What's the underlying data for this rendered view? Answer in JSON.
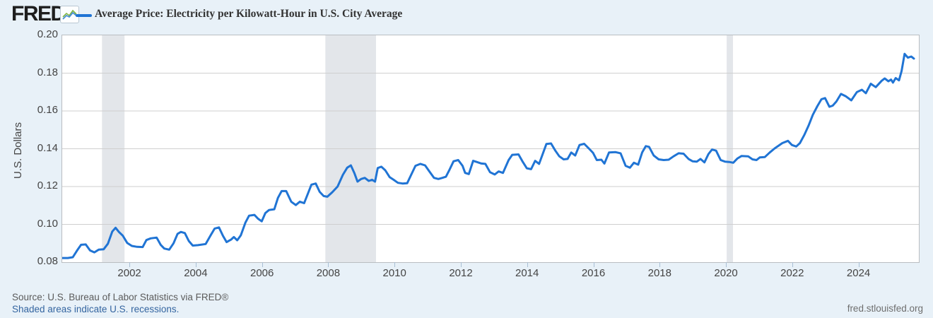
{
  "header": {
    "logo_text": "FRED",
    "logo_reg": "®",
    "legend": {
      "swatch_color": "#2074d4",
      "label": "Average Price: Electricity per Kilowatt-Hour in U.S. City Average"
    }
  },
  "footer": {
    "source": "Source: U.S. Bureau of Labor Statistics via FRED®",
    "recession_note": "Shaded areas indicate U.S. recessions.",
    "site": "fred.stlouisfed.org"
  },
  "colors": {
    "page_background": "#e8f1f8",
    "plot_background": "#ffffff",
    "plot_border": "#b9bdc1",
    "gridline": "#cfcfcf",
    "recession_band": "#e3e6ea",
    "line": "#2074d4",
    "axis_text": "#444444",
    "tick_mark": "#a9bfd4",
    "link_blue": "#3465a0"
  },
  "chart_data": {
    "type": "line",
    "title": "Average Price: Electricity per Kilowatt-Hour in U.S. City Average",
    "xlabel": "",
    "ylabel": "U.S. Dollars",
    "ylim": [
      0.08,
      0.2
    ],
    "xlim": [
      1999.95,
      2025.8
    ],
    "grid": true,
    "legend_position": "top",
    "line_color": "#2074d4",
    "y_ticks": [
      0.08,
      0.1,
      0.12,
      0.14,
      0.16,
      0.18,
      0.2
    ],
    "y_tick_labels": [
      "0.08",
      "0.10",
      "0.12",
      "0.14",
      "0.16",
      "0.18",
      "0.20"
    ],
    "x_ticks": [
      2002,
      2004,
      2006,
      2008,
      2010,
      2012,
      2014,
      2016,
      2018,
      2020,
      2022,
      2024
    ],
    "x_tick_labels": [
      "2002",
      "2004",
      "2006",
      "2008",
      "2010",
      "2012",
      "2014",
      "2016",
      "2018",
      "2020",
      "2022",
      "2024"
    ],
    "recessions": [
      {
        "start": 2001.15,
        "end": 2001.83
      },
      {
        "start": 2007.89,
        "end": 2009.42
      },
      {
        "start": 2020.0,
        "end": 2020.19
      }
    ],
    "series": [
      {
        "name": "Average Price: Electricity per Kilowatt-Hour in U.S. City Average",
        "units": "U.S. Dollars",
        "points": [
          [
            1999.95,
            0.0822
          ],
          [
            2000.12,
            0.0822
          ],
          [
            2000.27,
            0.0826
          ],
          [
            2000.4,
            0.0862
          ],
          [
            2000.52,
            0.0892
          ],
          [
            2000.66,
            0.0894
          ],
          [
            2000.79,
            0.0862
          ],
          [
            2000.92,
            0.0852
          ],
          [
            2001.05,
            0.0866
          ],
          [
            2001.2,
            0.0868
          ],
          [
            2001.33,
            0.0898
          ],
          [
            2001.46,
            0.0962
          ],
          [
            2001.56,
            0.0982
          ],
          [
            2001.66,
            0.096
          ],
          [
            2001.78,
            0.094
          ],
          [
            2001.91,
            0.0902
          ],
          [
            2002.05,
            0.0886
          ],
          [
            2002.21,
            0.0881
          ],
          [
            2002.38,
            0.088
          ],
          [
            2002.49,
            0.0917
          ],
          [
            2002.62,
            0.0926
          ],
          [
            2002.8,
            0.093
          ],
          [
            2002.92,
            0.0892
          ],
          [
            2003.03,
            0.0872
          ],
          [
            2003.18,
            0.0866
          ],
          [
            2003.31,
            0.09
          ],
          [
            2003.43,
            0.095
          ],
          [
            2003.53,
            0.096
          ],
          [
            2003.65,
            0.0954
          ],
          [
            2003.77,
            0.0912
          ],
          [
            2003.89,
            0.0888
          ],
          [
            2004.05,
            0.089
          ],
          [
            2004.28,
            0.0896
          ],
          [
            2004.43,
            0.0942
          ],
          [
            2004.55,
            0.0978
          ],
          [
            2004.68,
            0.0984
          ],
          [
            2004.8,
            0.094
          ],
          [
            2004.91,
            0.0906
          ],
          [
            2005.05,
            0.092
          ],
          [
            2005.13,
            0.0933
          ],
          [
            2005.23,
            0.0916
          ],
          [
            2005.34,
            0.0942
          ],
          [
            2005.48,
            0.101
          ],
          [
            2005.59,
            0.1046
          ],
          [
            2005.75,
            0.105
          ],
          [
            2005.86,
            0.103
          ],
          [
            2005.97,
            0.1016
          ],
          [
            2006.08,
            0.106
          ],
          [
            2006.19,
            0.1076
          ],
          [
            2006.35,
            0.108
          ],
          [
            2006.46,
            0.114
          ],
          [
            2006.57,
            0.1176
          ],
          [
            2006.71,
            0.1176
          ],
          [
            2006.86,
            0.112
          ],
          [
            2007.0,
            0.1102
          ],
          [
            2007.12,
            0.112
          ],
          [
            2007.25,
            0.1112
          ],
          [
            2007.38,
            0.117
          ],
          [
            2007.47,
            0.121
          ],
          [
            2007.6,
            0.1216
          ],
          [
            2007.72,
            0.1172
          ],
          [
            2007.84,
            0.115
          ],
          [
            2007.95,
            0.1146
          ],
          [
            2008.1,
            0.117
          ],
          [
            2008.26,
            0.12
          ],
          [
            2008.42,
            0.1262
          ],
          [
            2008.55,
            0.13
          ],
          [
            2008.66,
            0.1312
          ],
          [
            2008.77,
            0.127
          ],
          [
            2008.86,
            0.1226
          ],
          [
            2008.97,
            0.124
          ],
          [
            2009.08,
            0.1246
          ],
          [
            2009.2,
            0.123
          ],
          [
            2009.3,
            0.1236
          ],
          [
            2009.39,
            0.1226
          ],
          [
            2009.47,
            0.1298
          ],
          [
            2009.58,
            0.1305
          ],
          [
            2009.7,
            0.1286
          ],
          [
            2009.83,
            0.125
          ],
          [
            2009.95,
            0.1236
          ],
          [
            2010.08,
            0.122
          ],
          [
            2010.22,
            0.1216
          ],
          [
            2010.36,
            0.1218
          ],
          [
            2010.48,
            0.1262
          ],
          [
            2010.61,
            0.131
          ],
          [
            2010.76,
            0.132
          ],
          [
            2010.9,
            0.1312
          ],
          [
            2011.03,
            0.128
          ],
          [
            2011.17,
            0.1246
          ],
          [
            2011.3,
            0.124
          ],
          [
            2011.42,
            0.1246
          ],
          [
            2011.53,
            0.1252
          ],
          [
            2011.64,
            0.129
          ],
          [
            2011.76,
            0.1334
          ],
          [
            2011.9,
            0.134
          ],
          [
            2012.03,
            0.131
          ],
          [
            2012.11,
            0.1272
          ],
          [
            2012.22,
            0.1266
          ],
          [
            2012.35,
            0.1336
          ],
          [
            2012.46,
            0.133
          ],
          [
            2012.6,
            0.1322
          ],
          [
            2012.72,
            0.132
          ],
          [
            2012.86,
            0.1276
          ],
          [
            2013.0,
            0.1264
          ],
          [
            2013.12,
            0.128
          ],
          [
            2013.25,
            0.1272
          ],
          [
            2013.42,
            0.134
          ],
          [
            2013.53,
            0.1368
          ],
          [
            2013.72,
            0.137
          ],
          [
            2013.85,
            0.133
          ],
          [
            2013.97,
            0.1297
          ],
          [
            2014.1,
            0.1292
          ],
          [
            2014.22,
            0.1336
          ],
          [
            2014.34,
            0.132
          ],
          [
            2014.45,
            0.1372
          ],
          [
            2014.56,
            0.1425
          ],
          [
            2014.7,
            0.1428
          ],
          [
            2014.83,
            0.139
          ],
          [
            2014.95,
            0.136
          ],
          [
            2015.08,
            0.1344
          ],
          [
            2015.2,
            0.1346
          ],
          [
            2015.31,
            0.138
          ],
          [
            2015.43,
            0.1364
          ],
          [
            2015.56,
            0.142
          ],
          [
            2015.7,
            0.1426
          ],
          [
            2015.85,
            0.14
          ],
          [
            2015.97,
            0.1378
          ],
          [
            2016.08,
            0.134
          ],
          [
            2016.22,
            0.1342
          ],
          [
            2016.31,
            0.1322
          ],
          [
            2016.45,
            0.138
          ],
          [
            2016.65,
            0.1382
          ],
          [
            2016.8,
            0.1376
          ],
          [
            2016.95,
            0.131
          ],
          [
            2017.08,
            0.13
          ],
          [
            2017.2,
            0.1326
          ],
          [
            2017.33,
            0.1316
          ],
          [
            2017.45,
            0.138
          ],
          [
            2017.56,
            0.1414
          ],
          [
            2017.66,
            0.141
          ],
          [
            2017.8,
            0.1364
          ],
          [
            2017.95,
            0.1344
          ],
          [
            2018.1,
            0.134
          ],
          [
            2018.25,
            0.1342
          ],
          [
            2018.4,
            0.136
          ],
          [
            2018.55,
            0.1376
          ],
          [
            2018.7,
            0.1374
          ],
          [
            2018.85,
            0.1346
          ],
          [
            2018.97,
            0.1334
          ],
          [
            2019.1,
            0.1332
          ],
          [
            2019.21,
            0.1346
          ],
          [
            2019.33,
            0.1328
          ],
          [
            2019.45,
            0.1372
          ],
          [
            2019.56,
            0.1396
          ],
          [
            2019.68,
            0.139
          ],
          [
            2019.82,
            0.134
          ],
          [
            2019.95,
            0.1332
          ],
          [
            2020.08,
            0.133
          ],
          [
            2020.2,
            0.1326
          ],
          [
            2020.32,
            0.1348
          ],
          [
            2020.45,
            0.1362
          ],
          [
            2020.65,
            0.136
          ],
          [
            2020.78,
            0.1344
          ],
          [
            2020.9,
            0.134
          ],
          [
            2021.0,
            0.1354
          ],
          [
            2021.15,
            0.1356
          ],
          [
            2021.3,
            0.138
          ],
          [
            2021.45,
            0.1402
          ],
          [
            2021.55,
            0.1414
          ],
          [
            2021.68,
            0.143
          ],
          [
            2021.85,
            0.1442
          ],
          [
            2021.97,
            0.142
          ],
          [
            2022.1,
            0.1412
          ],
          [
            2022.21,
            0.143
          ],
          [
            2022.34,
            0.1472
          ],
          [
            2022.47,
            0.1522
          ],
          [
            2022.6,
            0.158
          ],
          [
            2022.74,
            0.1626
          ],
          [
            2022.86,
            0.1662
          ],
          [
            2022.97,
            0.1668
          ],
          [
            2023.1,
            0.1622
          ],
          [
            2023.2,
            0.1628
          ],
          [
            2023.31,
            0.165
          ],
          [
            2023.45,
            0.169
          ],
          [
            2023.6,
            0.1677
          ],
          [
            2023.76,
            0.1656
          ],
          [
            2023.93,
            0.17
          ],
          [
            2024.08,
            0.1712
          ],
          [
            2024.2,
            0.1694
          ],
          [
            2024.35,
            0.1744
          ],
          [
            2024.5,
            0.1726
          ],
          [
            2024.68,
            0.176
          ],
          [
            2024.77,
            0.1772
          ],
          [
            2024.88,
            0.1757
          ],
          [
            2024.96,
            0.1766
          ],
          [
            2025.02,
            0.175
          ],
          [
            2025.1,
            0.1774
          ],
          [
            2025.2,
            0.1762
          ],
          [
            2025.28,
            0.1812
          ],
          [
            2025.37,
            0.1902
          ],
          [
            2025.47,
            0.1882
          ],
          [
            2025.57,
            0.1888
          ],
          [
            2025.65,
            0.1877
          ]
        ]
      }
    ]
  }
}
